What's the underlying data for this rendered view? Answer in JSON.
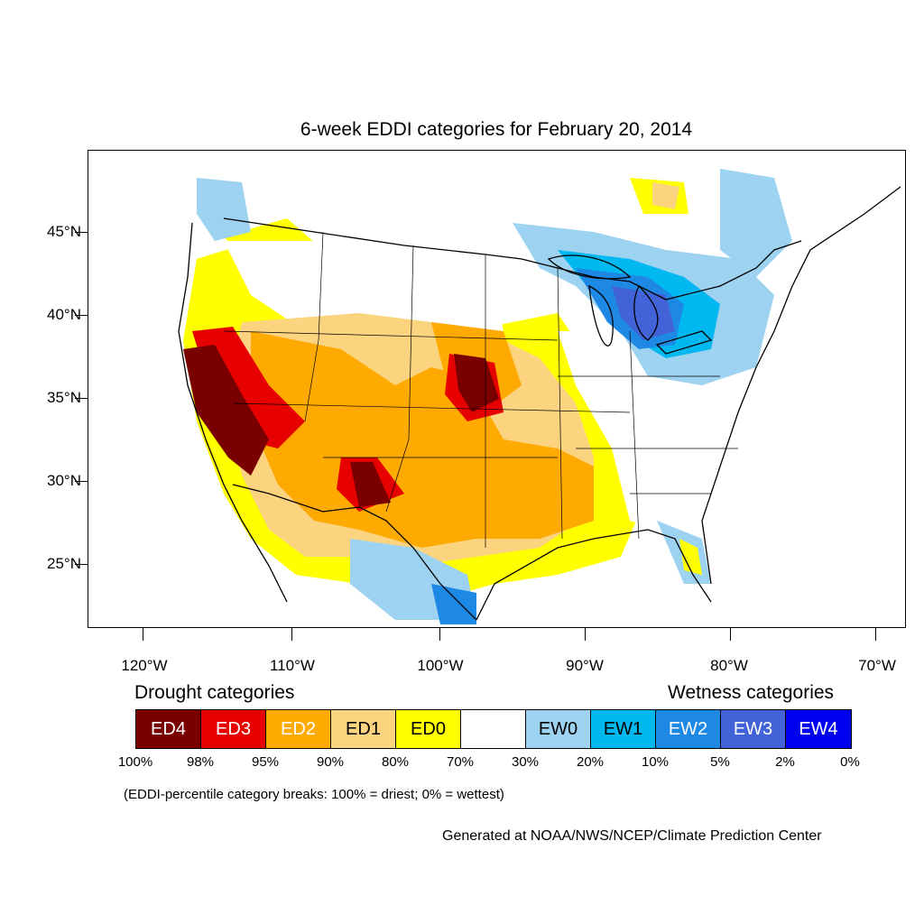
{
  "title": "6-week EDDI categories for February 20, 2014",
  "lat_labels": [
    "45°N",
    "40°N",
    "35°N",
    "30°N",
    "25°N"
  ],
  "lon_labels": [
    "120°W",
    "110°W",
    "100°W",
    "90°W",
    "80°W",
    "70°W"
  ],
  "legend": {
    "drought_heading": "Drought categories",
    "wetness_heading": "Wetness categories",
    "categories": [
      {
        "label": "ED4",
        "color": "#7a0000",
        "text_color": "#ffffff"
      },
      {
        "label": "ED3",
        "color": "#e60000",
        "text_color": "#ffffff"
      },
      {
        "label": "ED2",
        "color": "#ffaa00",
        "text_color": "#ffffff"
      },
      {
        "label": "ED1",
        "color": "#fcd37f",
        "text_color": "#000000"
      },
      {
        "label": "ED0",
        "color": "#ffff00",
        "text_color": "#000000"
      },
      {
        "label": "",
        "color": "#ffffff",
        "text_color": "#000000"
      },
      {
        "label": "EW0",
        "color": "#9dd3f0",
        "text_color": "#000000"
      },
      {
        "label": "EW1",
        "color": "#00b8f0",
        "text_color": "#000000"
      },
      {
        "label": "EW2",
        "color": "#1e88e5",
        "text_color": "#ffffff"
      },
      {
        "label": "EW3",
        "color": "#4262d8",
        "text_color": "#ffffff"
      },
      {
        "label": "EW4",
        "color": "#0000f0",
        "text_color": "#ffffff"
      }
    ],
    "percentiles": [
      "100%",
      "98%",
      "95%",
      "90%",
      "80%",
      "70%",
      "30%",
      "20%",
      "10%",
      "5%",
      "2%",
      "0%"
    ]
  },
  "note": "(EDDI-percentile category breaks: 100% = driest; 0% = wettest)",
  "credit": "Generated at NOAA/NWS/NCEP/Climate Prediction Center"
}
